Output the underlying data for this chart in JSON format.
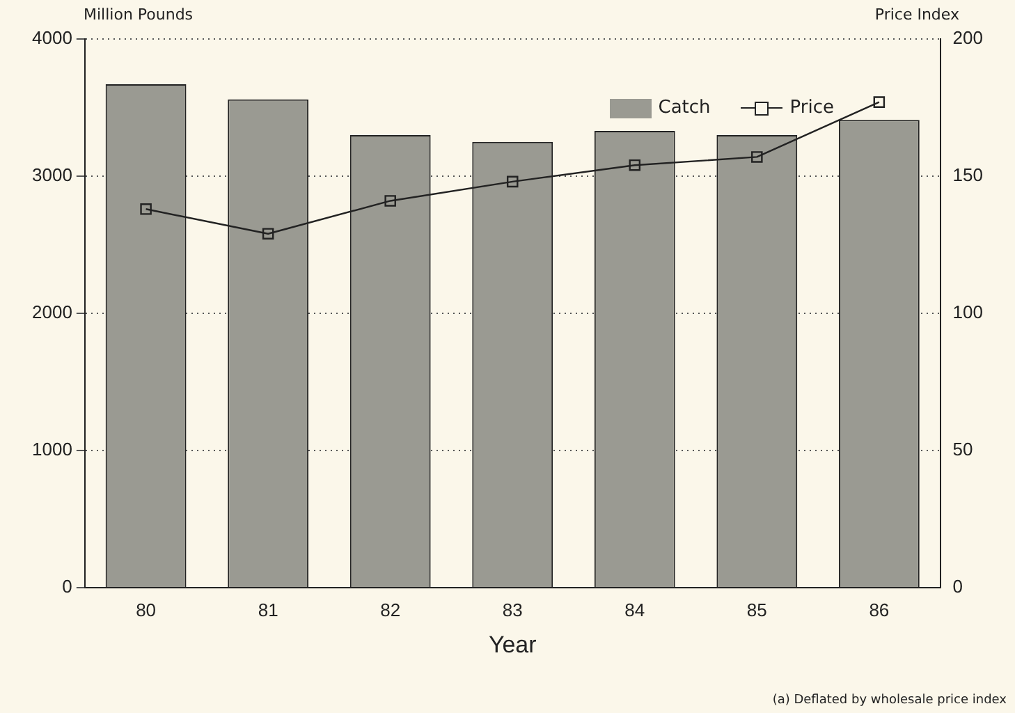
{
  "chart_data": {
    "type": "bar",
    "xlabel": "Year",
    "ylabel": "Million Pounds",
    "y2label": "Price Index",
    "categories": [
      "80",
      "81",
      "82",
      "83",
      "84",
      "85",
      "86"
    ],
    "series": [
      {
        "name": "Catch",
        "color": "#9a9a92",
        "values": [
          3670,
          3560,
          3300,
          3250,
          3330,
          3300,
          3410
        ]
      },
      {
        "name": "Price",
        "type": "line",
        "axis": "y2",
        "color": "#222222",
        "marker": "square",
        "values": [
          138,
          129,
          141,
          148,
          154,
          157,
          177
        ]
      }
    ],
    "ylim": [
      0,
      4000
    ],
    "yticks": [
      0,
      1000,
      2000,
      3000,
      4000
    ],
    "y2lim": [
      0,
      200
    ],
    "y2ticks": [
      0,
      50,
      100,
      150,
      200
    ],
    "grid": "y",
    "legend": "top right",
    "annotations": [
      "(a) Deflated by wholesale price index"
    ]
  }
}
